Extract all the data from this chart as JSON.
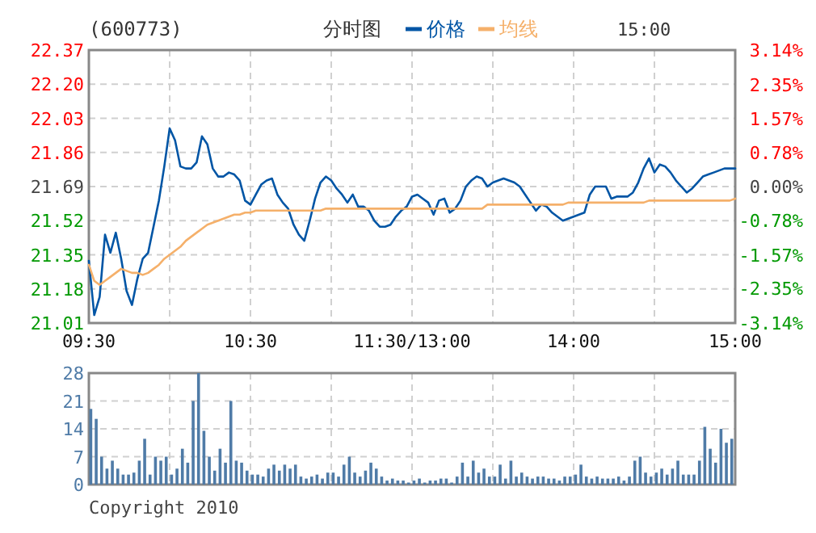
{
  "chart_data": [
    {
      "type": "line",
      "title": "(600773)",
      "subtitle": "分时图",
      "annotations": [
        "15:00"
      ],
      "legend": "top",
      "grid": true,
      "marker": "none",
      "line_style": "solid",
      "categories": [
        "09:30",
        null,
        null,
        null,
        null,
        null,
        null,
        null,
        null,
        null,
        null,
        null,
        null,
        null,
        null,
        null,
        null,
        null,
        null,
        null,
        null,
        null,
        null,
        null,
        null,
        null,
        null,
        null,
        null,
        null,
        "10:30",
        null,
        null,
        null,
        null,
        null,
        null,
        null,
        null,
        null,
        null,
        null,
        null,
        null,
        null,
        null,
        null,
        null,
        null,
        null,
        null,
        null,
        null,
        null,
        null,
        null,
        null,
        null,
        null,
        null,
        "11:30/13:00",
        null,
        null,
        null,
        null,
        null,
        null,
        null,
        null,
        null,
        null,
        null,
        null,
        null,
        null,
        null,
        null,
        null,
        null,
        null,
        null,
        null,
        null,
        null,
        null,
        null,
        null,
        null,
        null,
        null,
        "14:00",
        null,
        null,
        null,
        null,
        null,
        null,
        null,
        null,
        null,
        null,
        null,
        null,
        null,
        null,
        null,
        null,
        null,
        null,
        null,
        null,
        null,
        null,
        null,
        null,
        null,
        null,
        null,
        null,
        null,
        "15:00"
      ],
      "ylim": [
        21.01,
        22.37
      ],
      "yticks": [
        21.01,
        21.18,
        21.35,
        21.52,
        21.69,
        21.86,
        22.03,
        {
          "value": 22.2,
          "label": "22.20"
        },
        22.37
      ],
      "y2lim": [
        -3.14,
        3.14
      ],
      "y2ticks": [
        {
          "value": -3.14,
          "label": "-3.14%"
        },
        {
          "value": -2.35,
          "label": "-2.35%"
        },
        {
          "value": -1.57,
          "label": "-1.57%"
        },
        {
          "value": -0.78,
          "label": "-0.78%"
        },
        {
          "value": 0,
          "label": "0.00%"
        },
        {
          "value": 0.78,
          "label": "0.78%"
        },
        {
          "value": 1.57,
          "label": "1.57%"
        },
        {
          "value": 2.35,
          "label": "2.35%"
        },
        {
          "value": 3.14,
          "label": "3.14%"
        }
      ],
      "series": [
        {
          "name": "价格",
          "color": "#0055a5",
          "values": [
            21.32,
            21.05,
            21.14,
            21.45,
            21.36,
            21.46,
            21.33,
            21.17,
            21.1,
            21.23,
            21.33,
            21.36,
            21.49,
            21.62,
            21.79,
            21.98,
            21.92,
            21.79,
            21.78,
            21.78,
            21.81,
            21.94,
            21.9,
            21.78,
            21.74,
            21.74,
            21.76,
            21.75,
            21.72,
            21.62,
            21.6,
            21.65,
            21.7,
            21.72,
            21.73,
            21.65,
            21.61,
            21.58,
            21.5,
            21.45,
            21.42,
            21.52,
            21.63,
            21.71,
            21.74,
            21.72,
            21.68,
            21.65,
            21.61,
            21.65,
            21.59,
            21.59,
            21.57,
            21.52,
            21.49,
            21.49,
            21.5,
            21.54,
            21.57,
            21.59,
            21.64,
            21.65,
            21.63,
            21.61,
            21.55,
            21.62,
            21.63,
            21.56,
            21.58,
            21.62,
            21.69,
            21.72,
            21.74,
            21.73,
            21.69,
            21.71,
            21.72,
            21.73,
            21.72,
            21.71,
            21.69,
            21.65,
            21.61,
            21.57,
            21.6,
            21.59,
            21.56,
            21.54,
            21.52,
            21.53,
            21.54,
            21.55,
            21.56,
            21.65,
            21.69,
            21.69,
            21.69,
            21.63,
            21.64,
            21.64,
            21.64,
            21.66,
            21.71,
            21.78,
            21.83,
            21.76,
            21.8,
            21.79,
            21.76,
            21.72,
            21.69,
            21.66,
            21.68,
            21.71,
            21.74,
            21.75,
            21.76,
            21.77,
            21.78,
            21.78,
            21.78
          ]
        },
        {
          "name": "均线",
          "color": "#f5b06a",
          "values": [
            21.3,
            21.22,
            21.2,
            21.22,
            21.24,
            21.26,
            21.28,
            21.27,
            21.26,
            21.26,
            21.25,
            21.26,
            21.28,
            21.3,
            21.33,
            21.35,
            21.37,
            21.39,
            21.42,
            21.44,
            21.46,
            21.48,
            21.5,
            21.51,
            21.52,
            21.53,
            21.54,
            21.55,
            21.55,
            21.56,
            21.56,
            21.57,
            21.57,
            21.57,
            21.57,
            21.57,
            21.57,
            21.57,
            21.57,
            21.57,
            21.57,
            21.57,
            21.57,
            21.57,
            21.58,
            21.58,
            21.58,
            21.58,
            21.58,
            21.58,
            21.58,
            21.58,
            21.58,
            21.58,
            21.58,
            21.58,
            21.58,
            21.58,
            21.58,
            21.58,
            21.58,
            21.58,
            21.58,
            21.58,
            21.58,
            21.58,
            21.58,
            21.58,
            21.58,
            21.58,
            21.58,
            21.58,
            21.58,
            21.58,
            21.6,
            21.6,
            21.6,
            21.6,
            21.6,
            21.6,
            21.6,
            21.6,
            21.6,
            21.6,
            21.6,
            21.6,
            21.6,
            21.6,
            21.6,
            21.61,
            21.61,
            21.61,
            21.61,
            21.61,
            21.61,
            21.61,
            21.61,
            21.61,
            21.61,
            21.61,
            21.61,
            21.61,
            21.61,
            21.61,
            21.62,
            21.62,
            21.62,
            21.62,
            21.62,
            21.62,
            21.62,
            21.62,
            21.62,
            21.62,
            21.62,
            21.62,
            21.62,
            21.62,
            21.62,
            21.62,
            21.63
          ]
        }
      ]
    },
    {
      "type": "bar",
      "annotations": [
        "Copyright 2010"
      ],
      "grid": true,
      "tick_labels": "y",
      "color": "#4f7ba7",
      "categories": [
        null,
        null,
        null,
        null,
        null,
        null,
        null,
        null,
        null,
        null,
        null,
        null,
        null,
        null,
        null,
        null,
        null,
        null,
        null,
        null,
        null,
        null,
        null,
        null,
        null,
        null,
        null,
        null,
        null,
        null,
        null,
        null,
        null,
        null,
        null,
        null,
        null,
        null,
        null,
        null,
        null,
        null,
        null,
        null,
        null,
        null,
        null,
        null,
        null,
        null,
        null,
        null,
        null,
        null,
        null,
        null,
        null,
        null,
        null,
        null,
        null,
        null,
        null,
        null,
        null,
        null,
        null,
        null,
        null,
        null,
        null,
        null,
        null,
        null,
        null,
        null,
        null,
        null,
        null,
        null,
        null,
        null,
        null,
        null,
        null,
        null,
        null,
        null,
        null,
        null,
        null,
        null,
        null,
        null,
        null,
        null,
        null,
        null,
        null,
        null,
        null,
        null,
        null,
        null,
        null,
        null,
        null,
        null,
        null,
        null,
        null,
        null,
        null,
        null,
        null,
        null,
        null,
        null,
        null,
        null,
        null
      ],
      "ylim": [
        0,
        28
      ],
      "yticks": [
        0,
        7,
        14,
        21,
        28
      ],
      "values": [
        19,
        16.5,
        7,
        4,
        6,
        4,
        2.5,
        2.5,
        3,
        6,
        11.5,
        2.5,
        7,
        6,
        7,
        2.5,
        4,
        9,
        5.5,
        21,
        28,
        13.5,
        7,
        3.5,
        9,
        5.5,
        21,
        6,
        5.5,
        3.5,
        2.5,
        2.5,
        2,
        4,
        5,
        3.5,
        5,
        4,
        5,
        2,
        1.5,
        2,
        2.5,
        1.5,
        3,
        3,
        2,
        5,
        7,
        3,
        2,
        3.5,
        5.5,
        4,
        2,
        1,
        1.5,
        1,
        1,
        0.5,
        1,
        1.5,
        0.5,
        1,
        1,
        1.5,
        1.5,
        0.5,
        2,
        5.5,
        2,
        6,
        3,
        4,
        2,
        2,
        5,
        1.5,
        6,
        2,
        3,
        2,
        1.5,
        2,
        2,
        1.5,
        1.5,
        1,
        2,
        2,
        2.5,
        5,
        2,
        1.5,
        2,
        1.5,
        1.5,
        1.5,
        2,
        1,
        2,
        6,
        7,
        3,
        2,
        3,
        4,
        2.5,
        4,
        6,
        2.5,
        2.5,
        2.5,
        6,
        14.5,
        9,
        5.5,
        14,
        10.5,
        11.5,
        null
      ]
    }
  ]
}
